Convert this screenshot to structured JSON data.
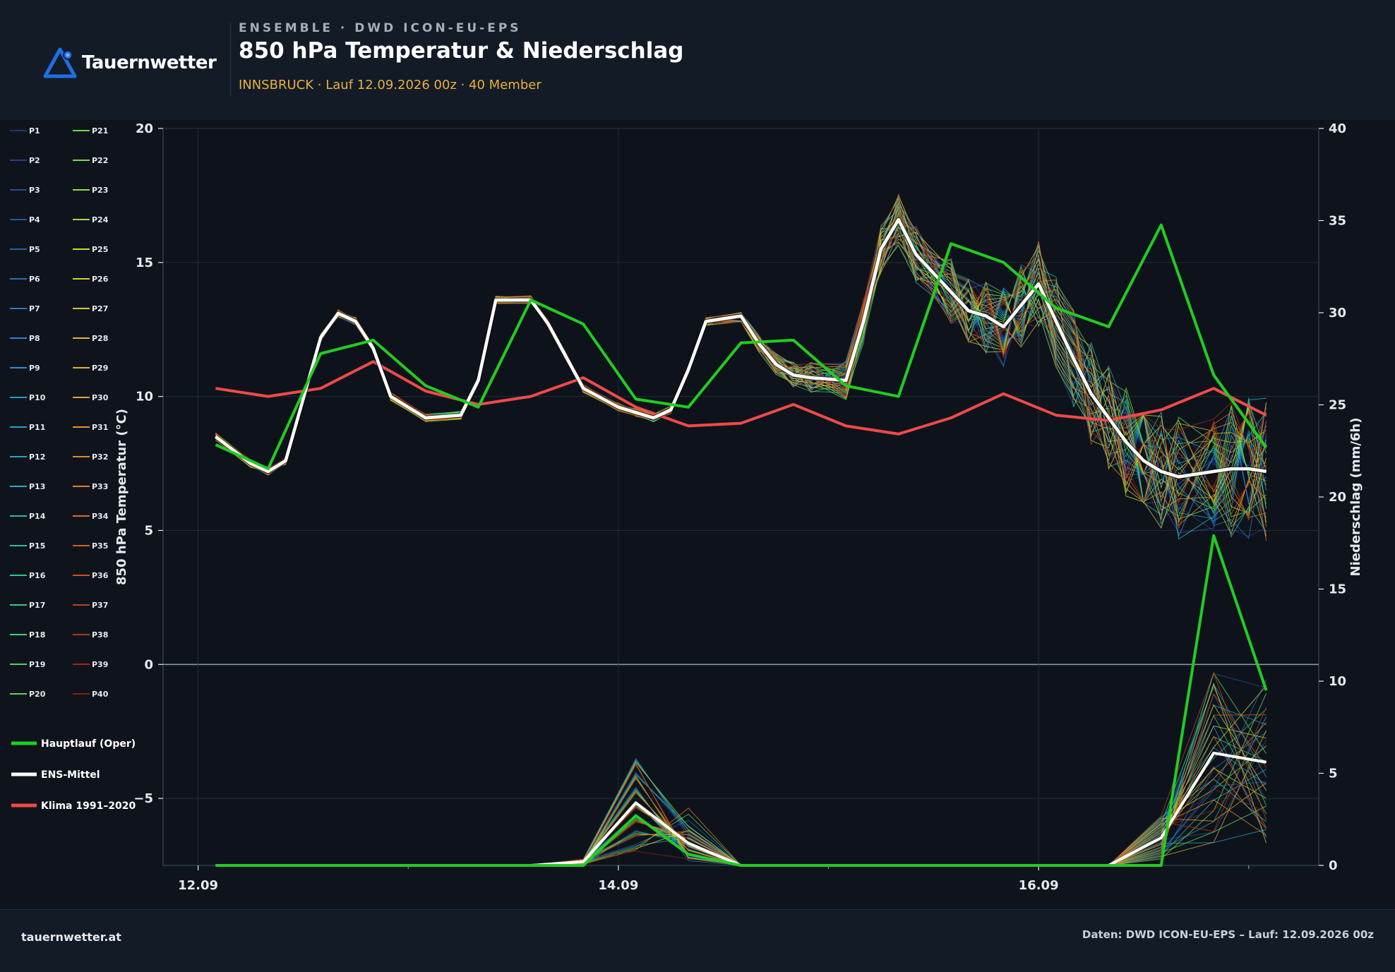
{
  "header": {
    "logo_text": "Tauernwetter",
    "kicker": "ENSEMBLE · DWD ICON-EU-EPS",
    "title": "850 hPa Temperatur & Niederschlag",
    "subtitle": "INNSBRUCK · Lauf 12.09.2026 00z · 40 Member"
  },
  "footer": {
    "left": "tauernwetter.at",
    "right": "Daten: DWD ICON-EU-EPS – Lauf: 12.09.2026 00z"
  },
  "colors": {
    "background": "#0f141c",
    "oper": "#22cc22",
    "ens_mean": "#ffffff",
    "climate": "#ef4a4a",
    "accent": "#e8b23a",
    "logo": "#1f6fe5"
  },
  "chart_data": {
    "type": "line",
    "x_unit": "hours since 12.09.2026 00z",
    "x_ticks": [
      {
        "x": 0,
        "label": "12.09"
      },
      {
        "x": 48,
        "label": "14.09"
      },
      {
        "x": 96,
        "label": "16.09"
      }
    ],
    "xlim": [
      -4,
      128
    ],
    "y_left": {
      "label": "850 hPa Temperatur (°C)",
      "lim": [
        -7.5,
        20
      ],
      "ticks": [
        -5,
        0,
        5,
        10,
        15,
        20
      ]
    },
    "y_right": {
      "label": "Niederschlag (mm/6h)",
      "lim": [
        0,
        40
      ],
      "ticks": [
        0,
        5,
        10,
        15,
        20,
        25,
        30,
        35,
        40
      ]
    },
    "grid": true,
    "legend_position": "left",
    "member_count": 40,
    "members": [
      "P1",
      "P2",
      "P3",
      "P4",
      "P5",
      "P6",
      "P7",
      "P8",
      "P9",
      "P10",
      "P11",
      "P12",
      "P13",
      "P14",
      "P15",
      "P16",
      "P17",
      "P18",
      "P19",
      "P20",
      "P21",
      "P22",
      "P23",
      "P24",
      "P25",
      "P26",
      "P27",
      "P28",
      "P29",
      "P30",
      "P31",
      "P32",
      "P33",
      "P34",
      "P35",
      "P36",
      "P37",
      "P38",
      "P39",
      "P40"
    ],
    "legend": [
      "Hauptlauf (Oper)",
      "ENS-Mittel",
      "Klima 1991–2020"
    ],
    "temperature": {
      "x": [
        2,
        6,
        8,
        10,
        14,
        16,
        18,
        20,
        22,
        26,
        30,
        32,
        34,
        38,
        40,
        42,
        44,
        48,
        50,
        52,
        54,
        56,
        58,
        62,
        64,
        66,
        68,
        70,
        74,
        76,
        78,
        80,
        82,
        86,
        88,
        90,
        92,
        94,
        96,
        98,
        100,
        102,
        104,
        106,
        108,
        110,
        112,
        116,
        118,
        120,
        122
      ],
      "ens_mean": [
        8.5,
        7.5,
        7.2,
        7.6,
        12.2,
        13.1,
        12.8,
        11.8,
        10.0,
        9.2,
        9.3,
        10.6,
        13.6,
        13.6,
        12.7,
        11.5,
        10.3,
        9.6,
        9.4,
        9.2,
        9.5,
        11.0,
        12.8,
        13.0,
        12.0,
        11.2,
        10.8,
        10.7,
        10.6,
        12.8,
        15.5,
        16.6,
        15.3,
        13.9,
        13.2,
        13.0,
        12.6,
        13.4,
        14.2,
        12.8,
        11.4,
        10.1,
        9.2,
        8.3,
        7.6,
        7.2,
        7.0,
        7.2,
        7.3,
        7.3,
        7.2
      ],
      "oper": {
        "x": [
          2,
          8,
          14,
          20,
          26,
          32,
          38,
          44,
          50,
          56,
          62,
          68,
          74,
          80,
          86,
          92,
          98,
          104,
          110,
          116,
          122
        ],
        "values": [
          8.2,
          7.3,
          11.6,
          12.1,
          10.4,
          9.6,
          13.6,
          12.7,
          9.9,
          9.6,
          12.0,
          12.1,
          10.4,
          10.0,
          15.7,
          15.0,
          13.3,
          12.6,
          16.4,
          10.8,
          8.1
        ]
      }
    },
    "precipitation": {
      "x": [
        2,
        8,
        14,
        20,
        26,
        32,
        38,
        44,
        50,
        56,
        62,
        68,
        74,
        80,
        86,
        92,
        98,
        104,
        110,
        116,
        122
      ],
      "ens_mean": [
        0,
        0,
        0,
        0,
        0,
        0,
        0,
        0.2,
        3.4,
        1.2,
        0,
        0,
        0,
        0,
        0,
        0,
        0,
        0,
        1.5,
        6.1,
        5.6
      ],
      "oper": [
        0,
        0,
        0,
        0,
        0,
        0,
        0,
        0,
        2.7,
        0.6,
        0,
        0,
        0,
        0,
        0,
        0,
        0,
        0,
        0,
        17.9,
        9.5
      ]
    },
    "climate": {
      "x": [
        2,
        8,
        14,
        20,
        26,
        32,
        38,
        44,
        50,
        56,
        62,
        68,
        74,
        80,
        86,
        92,
        98,
        104,
        110,
        116,
        122
      ],
      "values": [
        10.3,
        10.0,
        10.3,
        11.3,
        10.2,
        9.7,
        10.0,
        10.7,
        9.6,
        8.9,
        9.0,
        9.7,
        8.9,
        8.6,
        9.2,
        10.1,
        9.3,
        9.1,
        9.5,
        10.3,
        9.3
      ]
    }
  }
}
